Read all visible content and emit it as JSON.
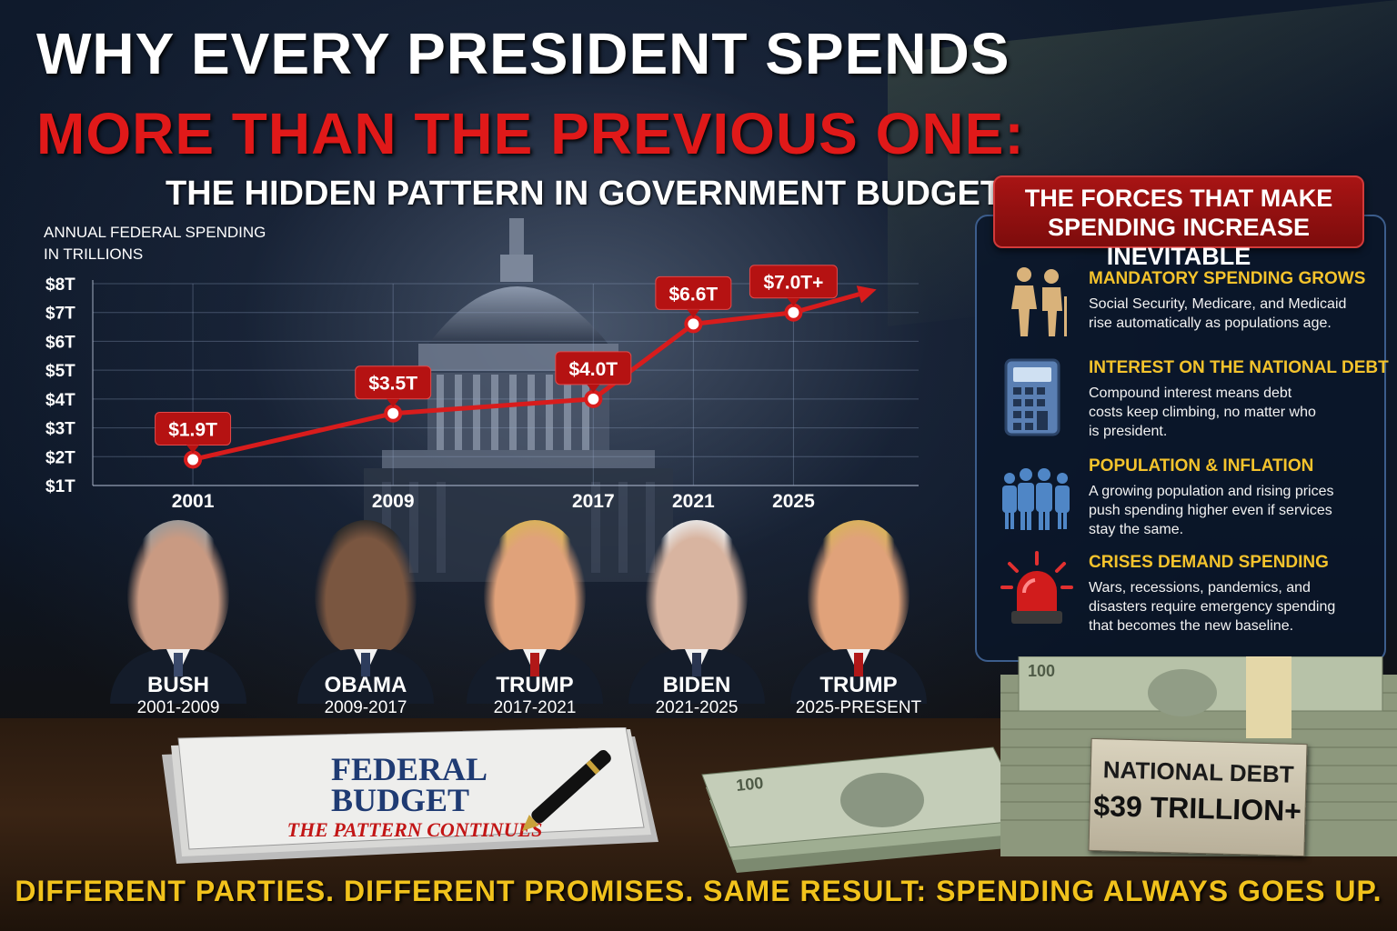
{
  "title": {
    "line1": "WHY EVERY PRESIDENT SPENDS",
    "line2": "MORE THAN THE PREVIOUS ONE:",
    "subtitle": "THE HIDDEN PATTERN IN GOVERNMENT BUDGETS"
  },
  "chart_data": {
    "type": "line",
    "ylabel_line1": "ANNUAL FEDERAL SPENDING",
    "ylabel_line2": "IN TRILLIONS",
    "yticks": [
      "$1T",
      "$2T",
      "$3T",
      "$4T",
      "$5T",
      "$6T",
      "$7T",
      "$8T"
    ],
    "ylim": [
      1,
      8
    ],
    "categories": [
      "2001",
      "2009",
      "2017",
      "2021",
      "2025"
    ],
    "x": [
      2001,
      2009,
      2017,
      2021,
      2025
    ],
    "values": [
      1.9,
      3.5,
      4.0,
      6.6,
      7.0
    ],
    "data_labels": [
      "$1.9T",
      "$3.5T",
      "$4.0T",
      "$6.6T",
      "$7.0T+"
    ],
    "grid": true,
    "line_color": "#d81c1c"
  },
  "presidents": [
    {
      "name": "BUSH",
      "years": "2001-2009"
    },
    {
      "name": "OBAMA",
      "years": "2009-2017"
    },
    {
      "name": "TRUMP",
      "years": "2017-2021"
    },
    {
      "name": "BIDEN",
      "years": "2021-2025"
    },
    {
      "name": "TRUMP",
      "years": "2025-PRESENT"
    }
  ],
  "forces": {
    "header_line1": "THE FORCES THAT MAKE",
    "header_line2": "SPENDING INCREASE INEVITABLE",
    "items": [
      {
        "icon": "elderly-couple-icon",
        "title": "MANDATORY SPENDING GROWS",
        "body": "Social Security, Medicare, and Medicaid\nrise automatically as populations age."
      },
      {
        "icon": "calculator-icon",
        "title": "INTEREST ON THE NATIONAL DEBT",
        "body": "Compound interest means debt\ncosts keep climbing, no matter who\nis president."
      },
      {
        "icon": "population-icon",
        "title": "POPULATION & INFLATION",
        "body": "A growing population and rising prices\npush spending higher even if services\nstay the same."
      },
      {
        "icon": "siren-icon",
        "title": "CRISES DEMAND SPENDING",
        "body": "Wars, recessions, pandemics, and\ndisasters require emergency spending\nthat becomes the new baseline."
      }
    ]
  },
  "papers": {
    "line1": "FEDERAL",
    "line2": "BUDGET",
    "line3": "THE PATTERN CONTINUES"
  },
  "debt_card": {
    "label": "NATIONAL DEBT",
    "value": "$39 TRILLION+"
  },
  "footer": "DIFFERENT PARTIES. DIFFERENT PROMISES. SAME RESULT: SPENDING ALWAYS GOES UP.",
  "colors": {
    "title_red": "#e01919",
    "accent_gold": "#f4c32c",
    "footer_yellow": "#f1c21c"
  }
}
